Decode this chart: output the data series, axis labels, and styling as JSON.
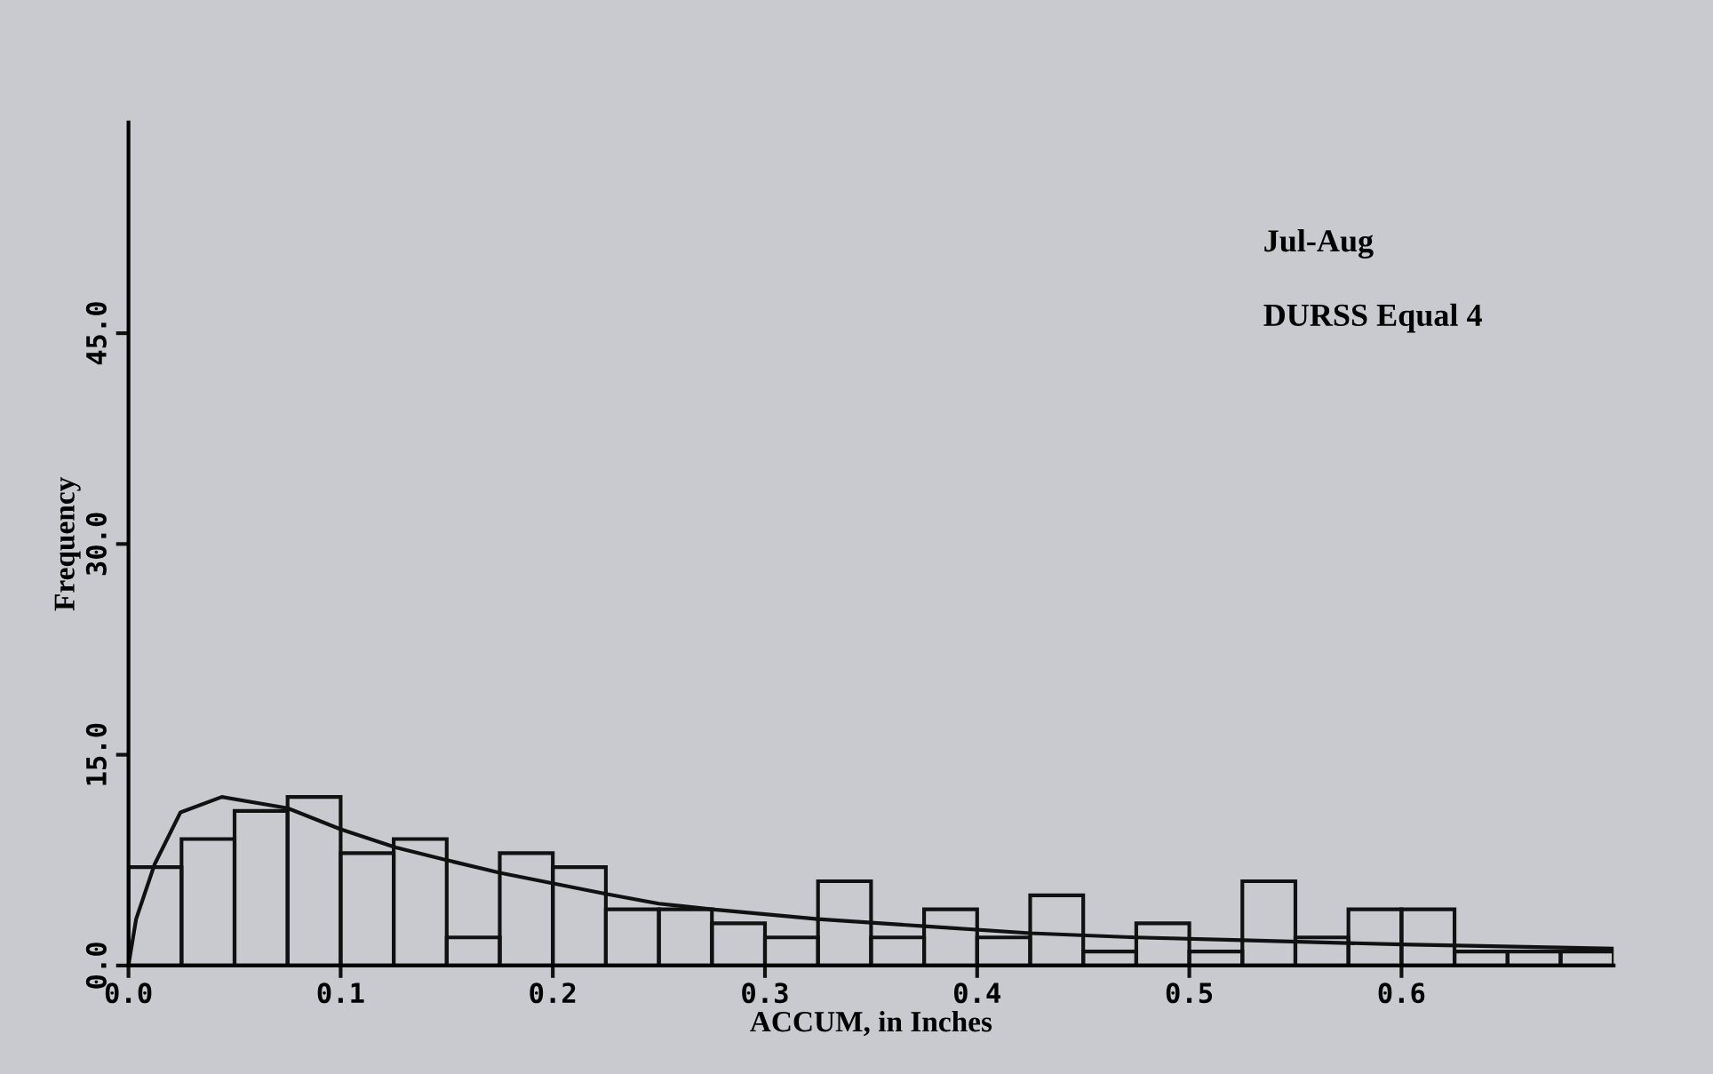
{
  "chart_data": {
    "type": "histogram",
    "xlabel": "ACCUM, in Inches",
    "ylabel": "Frequency",
    "annotations": [
      "Jul-Aug",
      "DURSS Equal 4"
    ],
    "xlim": [
      0,
      0.7
    ],
    "ylim": [
      0,
      60
    ],
    "xticks": [
      {
        "value": 0,
        "label": "0.0"
      },
      {
        "value": 0.1,
        "label": "0.1"
      },
      {
        "value": 0.2,
        "label": "0.2"
      },
      {
        "value": 0.3,
        "label": "0.3"
      },
      {
        "value": 0.4,
        "label": "0.4"
      },
      {
        "value": 0.5,
        "label": "0.5"
      },
      {
        "value": 0.6,
        "label": "0.6"
      }
    ],
    "yticks": [
      {
        "value": 0,
        "label": "0.0"
      },
      {
        "value": 15,
        "label": "15.0"
      },
      {
        "value": 30,
        "label": "30.0"
      },
      {
        "value": 45,
        "label": "45.0"
      }
    ],
    "grid": false,
    "legend": false,
    "series": [
      {
        "color": "#111111",
        "bins": [
          0,
          0.025,
          0.05,
          0.075,
          0.1,
          0.125,
          0.15,
          0.175,
          0.2,
          0.225,
          0.25,
          0.275,
          0.3,
          0.325,
          0.35,
          0.375,
          0.4,
          0.425,
          0.45,
          0.475,
          0.5,
          0.525,
          0.55,
          0.575,
          0.6,
          0.625,
          0.65,
          0.675,
          0.7
        ],
        "values": [
          7,
          9,
          11,
          12,
          8,
          9,
          2,
          8,
          7,
          4,
          4,
          3,
          2,
          6,
          2,
          4,
          2,
          5,
          1,
          3,
          1,
          6,
          2,
          4,
          4,
          1,
          1,
          1
        ]
      },
      {
        "type": "line",
        "color": "#111111",
        "x": [
          0,
          0.0036,
          0.0123,
          0.0245,
          0.044,
          0.075,
          0.1,
          0.126,
          0.15,
          0.175,
          0.225,
          0.25,
          0.275,
          0.325,
          0.375,
          0.425,
          0.475,
          0.525,
          0.6,
          0.7
        ],
        "values": [
          0,
          3.3,
          7.2,
          10.9,
          12.0,
          11.2,
          9.7,
          8.4,
          7.5,
          6.6,
          5.1,
          4.4,
          4.0,
          3.3,
          2.8,
          2.3,
          2.0,
          1.8,
          1.5,
          1.2
        ]
      }
    ]
  }
}
